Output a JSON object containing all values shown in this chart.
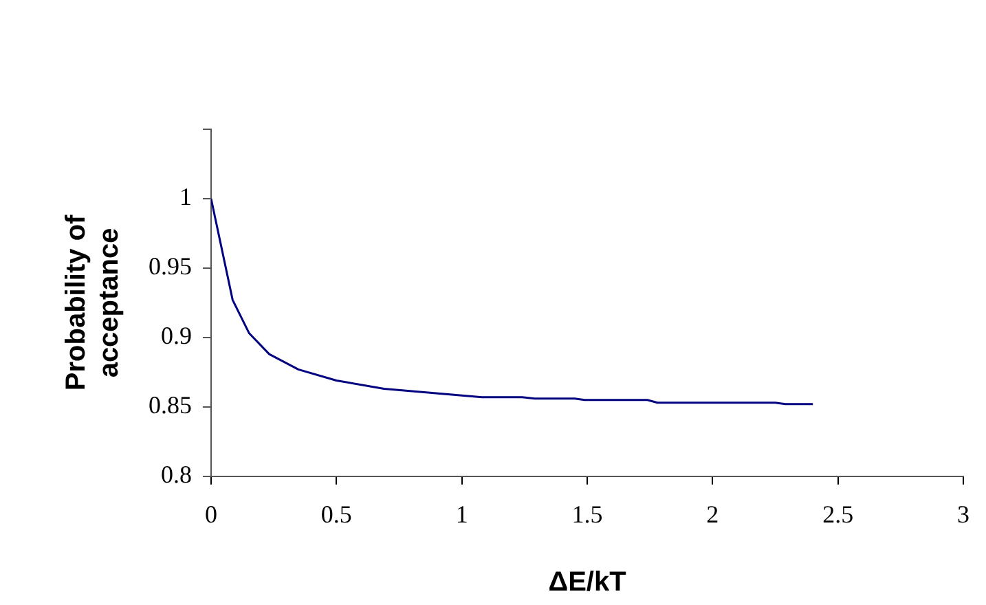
{
  "chart_data": {
    "type": "line",
    "xlabel": "ΔE/kT",
    "ylabel": "Probability of acceptance",
    "x": [
      0,
      0.086,
      0.152,
      0.232,
      0.348,
      0.5,
      0.69,
      1.08,
      1.24,
      1.29,
      1.45,
      1.49,
      1.74,
      1.78,
      2.25,
      2.29,
      2.4
    ],
    "series": [
      {
        "color": "#000080",
        "values": [
          1.0,
          0.927,
          0.903,
          0.888,
          0.877,
          0.869,
          0.863,
          0.857,
          0.857,
          0.856,
          0.856,
          0.855,
          0.855,
          0.853,
          0.853,
          0.852,
          0.852
        ]
      }
    ],
    "xlim": [
      0,
      3
    ],
    "xticks": [
      0,
      0.5,
      1,
      1.5,
      2,
      2.5,
      3
    ],
    "ylim": [
      0.8,
      1.05
    ],
    "yticks": [
      0.8,
      0.85,
      0.9,
      0.95,
      1,
      {
        "value": 1.05,
        "label": null
      }
    ],
    "marker": "none",
    "line_style": "solid",
    "legend": false
  }
}
